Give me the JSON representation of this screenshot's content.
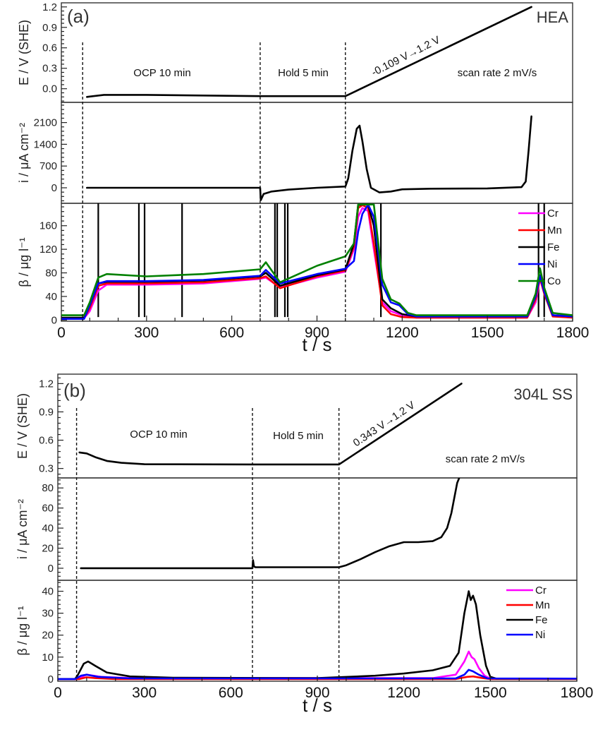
{
  "chart_data": [
    {
      "id": "a",
      "type": "line",
      "panel_label": "(a)",
      "sample_label": "HEA",
      "xlabel": "t / s",
      "xlim": [
        0,
        1800
      ],
      "xticks": [
        0,
        300,
        600,
        900,
        1200,
        1500,
        1800
      ],
      "xtick_labels": [
        "0",
        "300",
        "600",
        "900",
        "1200",
        "1500",
        "1800"
      ],
      "phase_boundaries_s": [
        75,
        700,
        1000
      ],
      "annotations": {
        "ocp": "OCP 10 min",
        "hold": "Hold 5 min",
        "ramp": "-0.109 V→1.2 V",
        "scan_rate": "scan rate 2 mV/s"
      },
      "subplots": [
        {
          "name": "potential",
          "ylabel": "E / V (SHE)",
          "ylim": [
            -0.2,
            1.26
          ],
          "yticks": [
            0.0,
            0.3,
            0.6,
            0.9,
            1.2
          ],
          "ytick_labels": [
            "0.0",
            "0.3",
            "0.6",
            "0.9",
            "1.2"
          ],
          "series": [
            {
              "name": "E",
              "color": "#000000",
              "x": [
                90,
                150,
                300,
                500,
                700,
                1000,
                1655
              ],
              "y": [
                -0.12,
                -0.09,
                -0.09,
                -0.1,
                -0.109,
                -0.109,
                1.2
              ]
            }
          ]
        },
        {
          "name": "current",
          "ylabel": "i / μA cm⁻²",
          "ylim": [
            -500,
            2750
          ],
          "yticks": [
            0,
            700,
            1400,
            2100
          ],
          "ytick_labels": [
            "0",
            "700",
            "1400",
            "2100"
          ],
          "series": [
            {
              "name": "i",
              "color": "#000000",
              "x": [
                90,
                700,
                702,
                712,
                740,
                800,
                900,
                1000,
                1010,
                1025,
                1040,
                1050,
                1060,
                1075,
                1090,
                1120,
                1160,
                1200,
                1300,
                1500,
                1620,
                1635,
                1645,
                1655
              ],
              "y": [
                0,
                0,
                -400,
                -200,
                -120,
                -60,
                0,
                40,
                300,
                1200,
                1900,
                2000,
                1500,
                600,
                0,
                -150,
                -120,
                -50,
                -30,
                -20,
                20,
                200,
                1200,
                2300
              ]
            }
          ]
        },
        {
          "name": "dissolution",
          "ylabel": "β / μg l⁻¹",
          "ylim": [
            -2,
            198
          ],
          "yticks": [
            0,
            40,
            80,
            120,
            160
          ],
          "ytick_labels": [
            "0",
            "40",
            "80",
            "120",
            "160"
          ],
          "legend": {
            "position": "top-right",
            "entries": [
              "Cr",
              "Mn",
              "Fe",
              "Ni",
              "Co"
            ]
          },
          "series": [
            {
              "name": "Cr",
              "color": "#ff00ff",
              "x": [
                0,
                80,
                100,
                130,
                160,
                300,
                500,
                700,
                720,
                770,
                900,
                1000,
                1030,
                1045,
                1060,
                1080,
                1100,
                1130,
                1160,
                1200,
                1250,
                1500,
                1640,
                1670,
                1685,
                1700,
                1730,
                1800
              ],
              "y": [
                3,
                3,
                15,
                50,
                60,
                60,
                62,
                70,
                72,
                55,
                72,
                82,
                120,
                175,
                190,
                185,
                120,
                30,
                15,
                8,
                4,
                4,
                4,
                30,
                70,
                45,
                8,
                4
              ]
            },
            {
              "name": "Mn",
              "color": "#ff0000",
              "x": [
                0,
                80,
                100,
                130,
                160,
                300,
                500,
                700,
                720,
                770,
                900,
                1000,
                1030,
                1045,
                1060,
                1080,
                1100,
                1130,
                1160,
                1200,
                1250,
                1500,
                1640,
                1670,
                1685,
                1700,
                1730,
                1800
              ],
              "y": [
                3,
                3,
                20,
                58,
                62,
                62,
                64,
                71,
                74,
                54,
                74,
                84,
                125,
                190,
                195,
                190,
                130,
                25,
                10,
                5,
                4,
                4,
                4,
                35,
                72,
                45,
                6,
                4
              ]
            },
            {
              "name": "Fe",
              "color": "#000000",
              "x": [
                0,
                80,
                100,
                130,
                160,
                300,
                500,
                700,
                720,
                770,
                900,
                1000,
                1030,
                1045,
                1060,
                1080,
                1100,
                1130,
                1160,
                1200,
                1250,
                1500,
                1640,
                1670,
                1685,
                1700,
                1730,
                1800
              ],
              "y": [
                4,
                4,
                25,
                62,
                65,
                65,
                67,
                74,
                80,
                58,
                76,
                86,
                130,
                195,
                196,
                196,
                160,
                35,
                20,
                10,
                6,
                6,
                6,
                40,
                76,
                48,
                8,
                6
              ]
            },
            {
              "name": "Ni",
              "color": "#0000ff",
              "x": [
                0,
                80,
                100,
                130,
                160,
                300,
                500,
                700,
                720,
                770,
                900,
                1000,
                1030,
                1045,
                1060,
                1080,
                1100,
                1130,
                1160,
                1190,
                1220,
                1250,
                1500,
                1640,
                1670,
                1685,
                1700,
                1730,
                1800
              ],
              "y": [
                2,
                2,
                25,
                62,
                66,
                66,
                68,
                75,
                85,
                62,
                78,
                87,
                100,
                150,
                180,
                196,
                175,
                60,
                30,
                25,
                10,
                6,
                6,
                6,
                40,
                75,
                48,
                8,
                6
              ]
            },
            {
              "name": "Co",
              "color": "#008000",
              "x": [
                0,
                80,
                100,
                130,
                160,
                300,
                500,
                700,
                720,
                770,
                900,
                1000,
                1030,
                1045,
                1060,
                1080,
                1100,
                1130,
                1160,
                1190,
                1220,
                1250,
                1500,
                1640,
                1670,
                1685,
                1700,
                1730,
                1800
              ],
              "y": [
                8,
                8,
                30,
                72,
                78,
                74,
                78,
                86,
                98,
                64,
                92,
                108,
                130,
                196,
                196,
                196,
                196,
                70,
                35,
                28,
                12,
                8,
                8,
                8,
                45,
                88,
                55,
                12,
                8
              ]
            }
          ],
          "fe_spikes_s": [
            130,
            273,
            293,
            425,
            752,
            760,
            787,
            797,
            1125,
            1680,
            1700
          ]
        }
      ]
    },
    {
      "id": "b",
      "type": "line",
      "panel_label": "(b)",
      "sample_label": "304L SS",
      "xlabel": "t / s",
      "xlim": [
        0,
        1800
      ],
      "xticks": [
        0,
        300,
        600,
        900,
        1200,
        1500,
        1800
      ],
      "xtick_labels": [
        "0",
        "300",
        "600",
        "900",
        "1200",
        "1500",
        "1800"
      ],
      "phase_boundaries_s": [
        65,
        675,
        975
      ],
      "annotations": {
        "ocp": "OCP 10 min",
        "hold": "Hold 5 min",
        "ramp": "0.343 V→1.2 V",
        "scan_rate": "scan rate 2 mV/s"
      },
      "subplots": [
        {
          "name": "potential",
          "ylabel": "E / V (SHE)",
          "ylim": [
            0.2,
            1.3
          ],
          "yticks": [
            0.3,
            0.6,
            0.9,
            1.2
          ],
          "ytick_labels": [
            "0.3",
            "0.6",
            "0.9",
            "1.2"
          ],
          "series": [
            {
              "name": "E",
              "color": "#000000",
              "x": [
                75,
                100,
                130,
                170,
                220,
                300,
                675,
                975,
                1400
              ],
              "y": [
                0.47,
                0.46,
                0.42,
                0.38,
                0.36,
                0.345,
                0.343,
                0.343,
                1.2
              ]
            }
          ]
        },
        {
          "name": "current",
          "ylabel": "i / μA cm⁻²",
          "ylim": [
            -12,
            90
          ],
          "yticks": [
            0,
            20,
            40,
            60,
            80
          ],
          "ytick_labels": [
            "0",
            "20",
            "40",
            "60",
            "80"
          ],
          "series": [
            {
              "name": "i",
              "color": "#000000",
              "x": [
                80,
                675,
                677,
                680,
                685,
                975,
                1000,
                1050,
                1100,
                1150,
                1200,
                1250,
                1300,
                1330,
                1350,
                1365,
                1375,
                1385,
                1392
              ],
              "y": [
                0,
                0,
                8,
                2,
                1,
                1,
                3,
                9,
                16,
                22,
                26,
                26,
                27,
                31,
                40,
                55,
                70,
                85,
                90
              ]
            }
          ]
        },
        {
          "name": "dissolution",
          "ylabel": "β / μg l⁻¹",
          "ylim": [
            -1,
            45
          ],
          "yticks": [
            0,
            10,
            20,
            30,
            40
          ],
          "ytick_labels": [
            "0",
            "10",
            "20",
            "30",
            "40"
          ],
          "legend": {
            "position": "top-right",
            "entries": [
              "Cr",
              "Mn",
              "Fe",
              "Ni"
            ]
          },
          "series": [
            {
              "name": "Cr",
              "color": "#ff00ff",
              "x": [
                0,
                65,
                100,
                150,
                250,
                1300,
                1380,
                1410,
                1425,
                1435,
                1445,
                1460,
                1480,
                1500,
                1800
              ],
              "y": [
                0,
                0,
                2,
                1,
                0.4,
                0.4,
                2,
                8,
                12.5,
                10,
                9,
                5,
                1.5,
                0.2,
                0.2
              ]
            },
            {
              "name": "Mn",
              "color": "#ff0000",
              "x": [
                0,
                75,
                100,
                130,
                200,
                1380,
                1420,
                1440,
                1470,
                1500,
                1800
              ],
              "y": [
                0,
                0,
                0.8,
                0.4,
                0,
                0,
                1,
                1.2,
                0.5,
                0,
                0
              ]
            },
            {
              "name": "Fe",
              "color": "#000000",
              "x": [
                0,
                60,
                70,
                90,
                105,
                130,
                170,
                250,
                400,
                900,
                1100,
                1200,
                1300,
                1360,
                1390,
                1410,
                1425,
                1432,
                1440,
                1450,
                1465,
                1485,
                1500,
                1520,
                1800
              ],
              "y": [
                0,
                0,
                2,
                7,
                8,
                6,
                3,
                1.2,
                0.6,
                0.4,
                1.5,
                2.5,
                4,
                6,
                12,
                30,
                40,
                36,
                38,
                34,
                20,
                6,
                1,
                0.2,
                0.2
              ]
            },
            {
              "name": "Ni",
              "color": "#0000ff",
              "x": [
                0,
                60,
                80,
                100,
                140,
                250,
                1380,
                1410,
                1425,
                1440,
                1460,
                1490,
                1800
              ],
              "y": [
                0,
                0,
                1.5,
                2,
                1,
                0.3,
                0.3,
                2,
                4.2,
                3.5,
                2,
                0.3,
                0.2
              ]
            }
          ]
        }
      ]
    }
  ]
}
